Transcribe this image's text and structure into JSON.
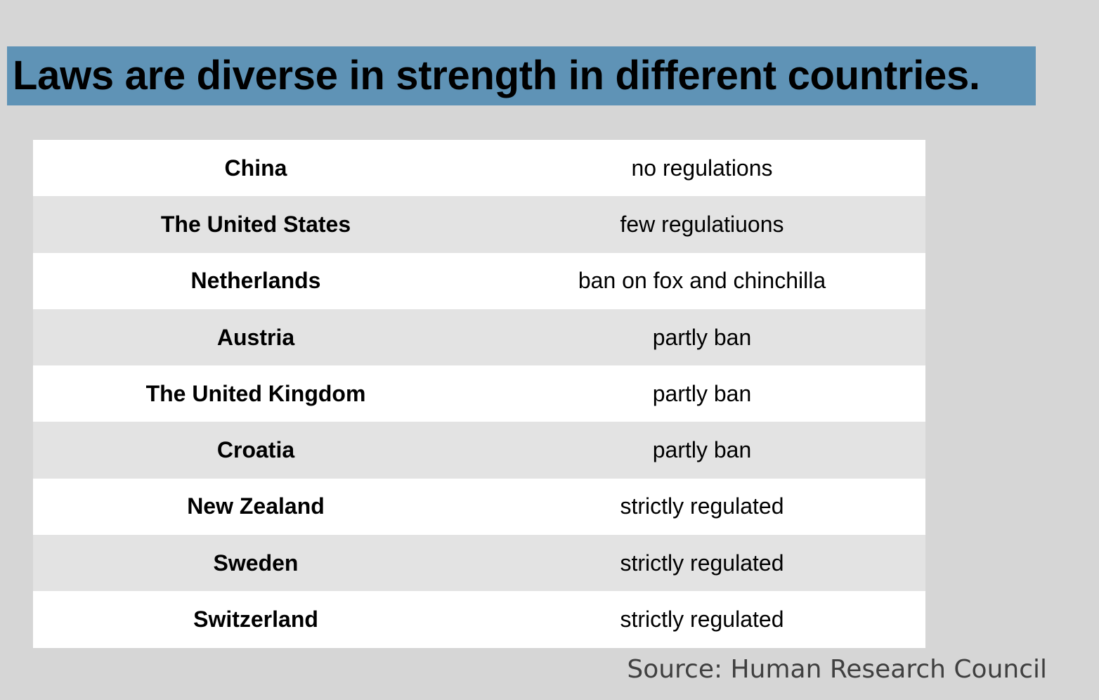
{
  "title": "Laws are diverse in strength in different countries.",
  "source": "Source: Human Research Council",
  "colors": {
    "background": "#d6d6d6",
    "title_banner": "#5f93b6",
    "row_odd": "#ffffff",
    "row_even": "#e3e3e3"
  },
  "chart_data": {
    "type": "table",
    "title": "Laws are diverse in strength in different countries.",
    "columns": [
      "",
      ""
    ],
    "rows": [
      {
        "country": "China",
        "law": "no regulations"
      },
      {
        "country": "The United States",
        "law": "few regulatiuons"
      },
      {
        "country": "Netherlands",
        "law": "ban on fox and chinchilla"
      },
      {
        "country": "Austria",
        "law": "partly ban"
      },
      {
        "country": "The United Kingdom",
        "law": "partly ban"
      },
      {
        "country": "Croatia",
        "law": "partly ban"
      },
      {
        "country": "New Zealand",
        "law": "strictly regulated"
      },
      {
        "country": "Sweden",
        "law": "strictly regulated"
      },
      {
        "country": "Switzerland",
        "law": "strictly regulated"
      }
    ]
  }
}
